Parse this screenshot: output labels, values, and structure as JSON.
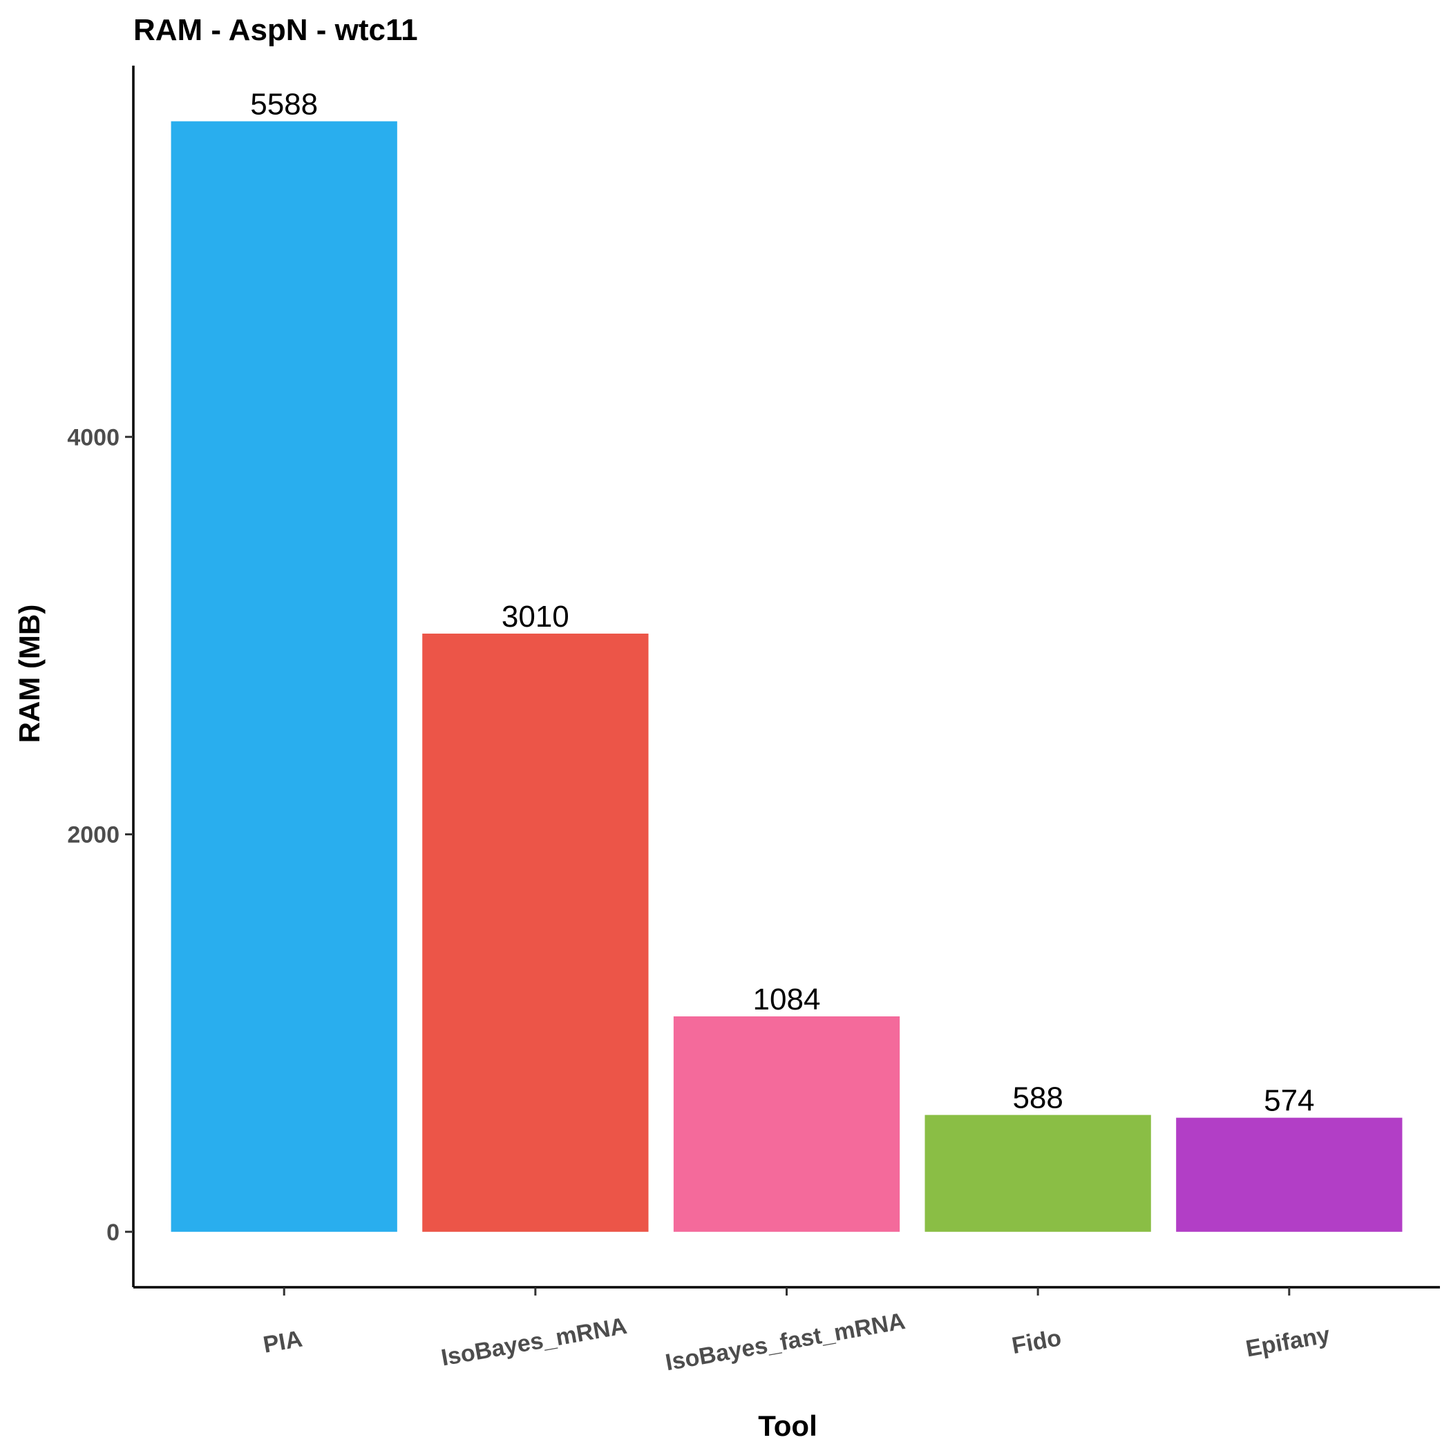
{
  "chart_data": {
    "type": "bar",
    "title": "RAM - AspN - wtc11",
    "xlabel": "Tool",
    "ylabel": "RAM (MB)",
    "categories": [
      "PIA",
      "IsoBayes_mRNA",
      "IsoBayes_fast_mRNA",
      "Fido",
      "Epifany"
    ],
    "values": [
      5588,
      3010,
      1084,
      588,
      574
    ],
    "value_labels": [
      "5588",
      "3010",
      "1084",
      "588",
      "574"
    ],
    "colors": [
      "#29aeee",
      "#ec5548",
      "#f46a9b",
      "#8abe45",
      "#b23ec6"
    ],
    "yticks": [
      0,
      2000,
      4000
    ],
    "ytick_labels": [
      "0",
      "2000",
      "4000"
    ],
    "ylim": [
      -279,
      5868
    ],
    "grid": false,
    "legend": "none"
  }
}
